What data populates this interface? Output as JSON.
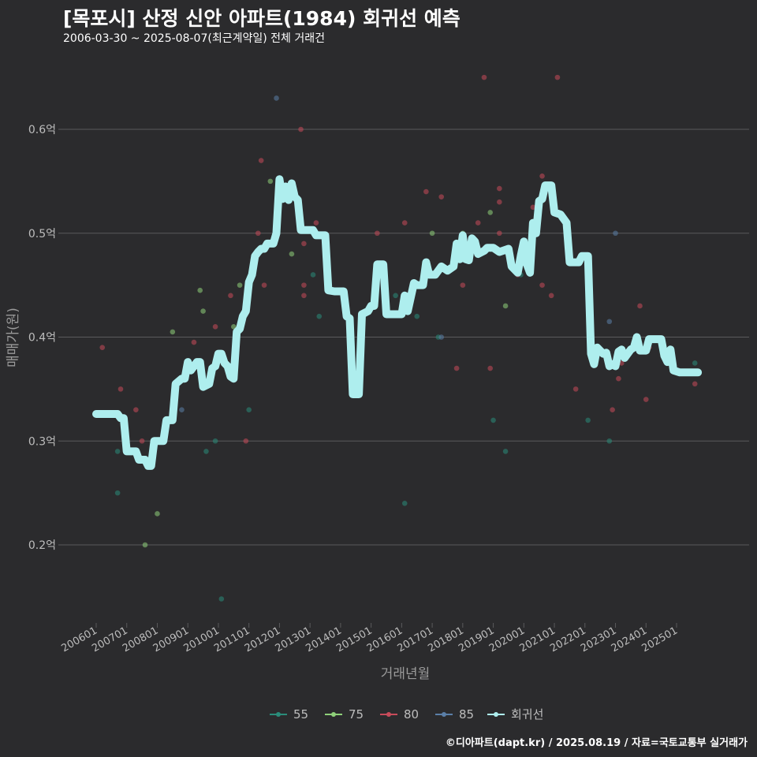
{
  "title": "[목포시] 산정 신안 아파트(1984) 회귀선 예측",
  "subtitle": "2006-03-30 ~ 2025-08-07(최근계약일) 전체 거래건",
  "footer": "©디아파트(dapt.kr) / 2025.08.19 / 자료=국토교통부 실거래가",
  "colors": {
    "background": "#2b2b2d",
    "grid": "#5a5a5c",
    "text": "#bdbdbd",
    "s55": "#2a8c7a",
    "s75": "#8fd17a",
    "s80": "#c84b5a",
    "s85": "#5b7fa8",
    "line": "#aeeeee"
  },
  "chart_data": {
    "type": "scatter",
    "title": "[목포시] 산정 신안 아파트(1984) 회귀선 예측",
    "xlabel": "거래년월",
    "ylabel": "매매가(원)",
    "xlim": [
      2005.9,
      2026.0
    ],
    "ylim": [
      0.125,
      0.68
    ],
    "yticks": [
      0.2,
      0.3,
      0.4,
      0.5,
      0.6
    ],
    "ytick_labels": [
      "0.2억",
      "0.3억",
      "0.4억",
      "0.5억",
      "0.6억"
    ],
    "xticks": [
      2006,
      2007,
      2008,
      2009,
      2010,
      2011,
      2012,
      2013,
      2014,
      2015,
      2016,
      2017,
      2018,
      2019,
      2020,
      2021,
      2022,
      2023,
      2024,
      2025
    ],
    "xtick_labels": [
      "200601",
      "200701",
      "200801",
      "200901",
      "201001",
      "201101",
      "201201",
      "201301",
      "201401",
      "201501",
      "201601",
      "201701",
      "201801",
      "201901",
      "202001",
      "202101",
      "202201",
      "202301",
      "202401",
      "202501"
    ],
    "legend": [
      {
        "key": "s55",
        "label": "55"
      },
      {
        "key": "s75",
        "label": "75"
      },
      {
        "key": "s80",
        "label": "80"
      },
      {
        "key": "s85",
        "label": "85"
      },
      {
        "key": "line",
        "label": "회귀선"
      }
    ],
    "series": [
      {
        "name": "55",
        "points": [
          [
            2006.7,
            0.29
          ],
          [
            2006.7,
            0.25
          ],
          [
            2007.9,
            0.295
          ],
          [
            2009.6,
            0.29
          ],
          [
            2009.9,
            0.3
          ],
          [
            2010.1,
            0.148
          ],
          [
            2011.0,
            0.33
          ],
          [
            2013.1,
            0.46
          ],
          [
            2013.3,
            0.42
          ],
          [
            2015.8,
            0.44
          ],
          [
            2016.1,
            0.24
          ],
          [
            2016.5,
            0.42
          ],
          [
            2017.2,
            0.4
          ],
          [
            2019.0,
            0.32
          ],
          [
            2019.4,
            0.29
          ],
          [
            2019.9,
            0.46
          ],
          [
            2022.1,
            0.32
          ],
          [
            2022.8,
            0.3
          ],
          [
            2025.6,
            0.375
          ]
        ]
      },
      {
        "name": "75",
        "points": [
          [
            2007.6,
            0.2
          ],
          [
            2008.0,
            0.23
          ],
          [
            2008.5,
            0.405
          ],
          [
            2009.4,
            0.445
          ],
          [
            2009.5,
            0.425
          ],
          [
            2010.5,
            0.41
          ],
          [
            2010.7,
            0.45
          ],
          [
            2011.7,
            0.55
          ],
          [
            2012.4,
            0.48
          ],
          [
            2017.0,
            0.5
          ],
          [
            2018.0,
            0.5
          ],
          [
            2018.9,
            0.52
          ],
          [
            2019.4,
            0.43
          ]
        ]
      },
      {
        "name": "80",
        "points": [
          [
            2006.2,
            0.39
          ],
          [
            2006.8,
            0.35
          ],
          [
            2007.3,
            0.33
          ],
          [
            2007.5,
            0.3
          ],
          [
            2009.2,
            0.395
          ],
          [
            2009.9,
            0.41
          ],
          [
            2010.4,
            0.44
          ],
          [
            2010.9,
            0.3
          ],
          [
            2011.3,
            0.5
          ],
          [
            2011.4,
            0.57
          ],
          [
            2011.5,
            0.45
          ],
          [
            2012.7,
            0.6
          ],
          [
            2012.8,
            0.45
          ],
          [
            2012.8,
            0.44
          ],
          [
            2012.8,
            0.49
          ],
          [
            2013.2,
            0.51
          ],
          [
            2015.2,
            0.5
          ],
          [
            2016.1,
            0.51
          ],
          [
            2016.8,
            0.54
          ],
          [
            2017.3,
            0.535
          ],
          [
            2017.8,
            0.37
          ],
          [
            2018.0,
            0.45
          ],
          [
            2018.5,
            0.51
          ],
          [
            2018.7,
            0.65
          ],
          [
            2018.9,
            0.37
          ],
          [
            2019.2,
            0.53
          ],
          [
            2019.2,
            0.543
          ],
          [
            2019.2,
            0.5
          ],
          [
            2019.8,
            0.46
          ],
          [
            2020.3,
            0.525
          ],
          [
            2020.6,
            0.555
          ],
          [
            2020.6,
            0.45
          ],
          [
            2020.9,
            0.44
          ],
          [
            2021.1,
            0.65
          ],
          [
            2021.7,
            0.35
          ],
          [
            2022.9,
            0.33
          ],
          [
            2023.1,
            0.36
          ],
          [
            2023.2,
            0.375
          ],
          [
            2023.8,
            0.43
          ],
          [
            2024.0,
            0.34
          ],
          [
            2024.1,
            0.39
          ],
          [
            2025.6,
            0.355
          ]
        ]
      },
      {
        "name": "85",
        "points": [
          [
            2008.8,
            0.33
          ],
          [
            2011.9,
            0.63
          ],
          [
            2017.3,
            0.4
          ],
          [
            2022.8,
            0.415
          ],
          [
            2023.0,
            0.5
          ]
        ]
      }
    ],
    "regression": [
      [
        2006.0,
        0.326
      ],
      [
        2006.7,
        0.326
      ],
      [
        2006.8,
        0.322
      ],
      [
        2006.9,
        0.322
      ],
      [
        2007.0,
        0.29
      ],
      [
        2007.3,
        0.29
      ],
      [
        2007.4,
        0.282
      ],
      [
        2007.6,
        0.282
      ],
      [
        2007.7,
        0.276
      ],
      [
        2007.8,
        0.276
      ],
      [
        2007.9,
        0.3
      ],
      [
        2008.1,
        0.3
      ],
      [
        2008.2,
        0.3
      ],
      [
        2008.3,
        0.32
      ],
      [
        2008.5,
        0.32
      ],
      [
        2008.6,
        0.355
      ],
      [
        2008.8,
        0.36
      ],
      [
        2008.9,
        0.36
      ],
      [
        2009.0,
        0.376
      ],
      [
        2009.1,
        0.368
      ],
      [
        2009.3,
        0.376
      ],
      [
        2009.4,
        0.376
      ],
      [
        2009.5,
        0.352
      ],
      [
        2009.7,
        0.355
      ],
      [
        2009.8,
        0.37
      ],
      [
        2009.9,
        0.372
      ],
      [
        2010.0,
        0.384
      ],
      [
        2010.1,
        0.384
      ],
      [
        2010.2,
        0.375
      ],
      [
        2010.3,
        0.372
      ],
      [
        2010.4,
        0.362
      ],
      [
        2010.5,
        0.36
      ],
      [
        2010.6,
        0.405
      ],
      [
        2010.7,
        0.408
      ],
      [
        2010.8,
        0.42
      ],
      [
        2010.9,
        0.425
      ],
      [
        2011.0,
        0.453
      ],
      [
        2011.1,
        0.46
      ],
      [
        2011.2,
        0.478
      ],
      [
        2011.3,
        0.482
      ],
      [
        2011.4,
        0.485
      ],
      [
        2011.5,
        0.485
      ],
      [
        2011.6,
        0.49
      ],
      [
        2011.8,
        0.49
      ],
      [
        2011.9,
        0.5
      ],
      [
        2012.0,
        0.552
      ],
      [
        2012.1,
        0.533
      ],
      [
        2012.2,
        0.545
      ],
      [
        2012.3,
        0.532
      ],
      [
        2012.4,
        0.548
      ],
      [
        2012.5,
        0.535
      ],
      [
        2012.6,
        0.532
      ],
      [
        2012.7,
        0.503
      ],
      [
        2013.1,
        0.503
      ],
      [
        2013.2,
        0.498
      ],
      [
        2013.5,
        0.498
      ],
      [
        2013.6,
        0.445
      ],
      [
        2013.8,
        0.444
      ],
      [
        2014.1,
        0.444
      ],
      [
        2014.2,
        0.42
      ],
      [
        2014.3,
        0.418
      ],
      [
        2014.4,
        0.345
      ],
      [
        2014.6,
        0.345
      ],
      [
        2014.7,
        0.422
      ],
      [
        2014.9,
        0.425
      ],
      [
        2015.0,
        0.43
      ],
      [
        2015.1,
        0.43
      ],
      [
        2015.2,
        0.47
      ],
      [
        2015.4,
        0.47
      ],
      [
        2015.5,
        0.422
      ],
      [
        2016.0,
        0.422
      ],
      [
        2016.1,
        0.44
      ],
      [
        2016.2,
        0.425
      ],
      [
        2016.4,
        0.452
      ],
      [
        2016.5,
        0.45
      ],
      [
        2016.6,
        0.45
      ],
      [
        2016.7,
        0.45
      ],
      [
        2016.8,
        0.472
      ],
      [
        2016.9,
        0.46
      ],
      [
        2017.1,
        0.46
      ],
      [
        2017.3,
        0.468
      ],
      [
        2017.5,
        0.464
      ],
      [
        2017.7,
        0.468
      ],
      [
        2017.8,
        0.49
      ],
      [
        2017.9,
        0.475
      ],
      [
        2018.0,
        0.498
      ],
      [
        2018.1,
        0.475
      ],
      [
        2018.2,
        0.474
      ],
      [
        2018.3,
        0.495
      ],
      [
        2018.4,
        0.492
      ],
      [
        2018.5,
        0.48
      ],
      [
        2018.7,
        0.483
      ],
      [
        2018.8,
        0.486
      ],
      [
        2019.0,
        0.486
      ],
      [
        2019.2,
        0.482
      ],
      [
        2019.5,
        0.485
      ],
      [
        2019.6,
        0.468
      ],
      [
        2019.8,
        0.462
      ],
      [
        2019.9,
        0.478
      ],
      [
        2020.0,
        0.492
      ],
      [
        2020.1,
        0.47
      ],
      [
        2020.2,
        0.462
      ],
      [
        2020.3,
        0.51
      ],
      [
        2020.4,
        0.5
      ],
      [
        2020.5,
        0.531
      ],
      [
        2020.6,
        0.533
      ],
      [
        2020.7,
        0.546
      ],
      [
        2020.9,
        0.546
      ],
      [
        2021.0,
        0.52
      ],
      [
        2021.2,
        0.518
      ],
      [
        2021.4,
        0.51
      ],
      [
        2021.5,
        0.472
      ],
      [
        2021.8,
        0.472
      ],
      [
        2021.9,
        0.478
      ],
      [
        2022.1,
        0.478
      ],
      [
        2022.2,
        0.384
      ],
      [
        2022.3,
        0.374
      ],
      [
        2022.4,
        0.39
      ],
      [
        2022.6,
        0.384
      ],
      [
        2022.7,
        0.385
      ],
      [
        2022.8,
        0.372
      ],
      [
        2022.9,
        0.374
      ],
      [
        2023.0,
        0.372
      ],
      [
        2023.1,
        0.386
      ],
      [
        2023.2,
        0.388
      ],
      [
        2023.3,
        0.38
      ],
      [
        2023.5,
        0.388
      ],
      [
        2023.6,
        0.39
      ],
      [
        2023.7,
        0.4
      ],
      [
        2023.8,
        0.387
      ],
      [
        2024.0,
        0.387
      ],
      [
        2024.1,
        0.398
      ],
      [
        2024.5,
        0.398
      ],
      [
        2024.6,
        0.382
      ],
      [
        2024.7,
        0.376
      ],
      [
        2024.8,
        0.388
      ],
      [
        2024.9,
        0.368
      ],
      [
        2025.1,
        0.366
      ],
      [
        2025.7,
        0.366
      ]
    ]
  }
}
